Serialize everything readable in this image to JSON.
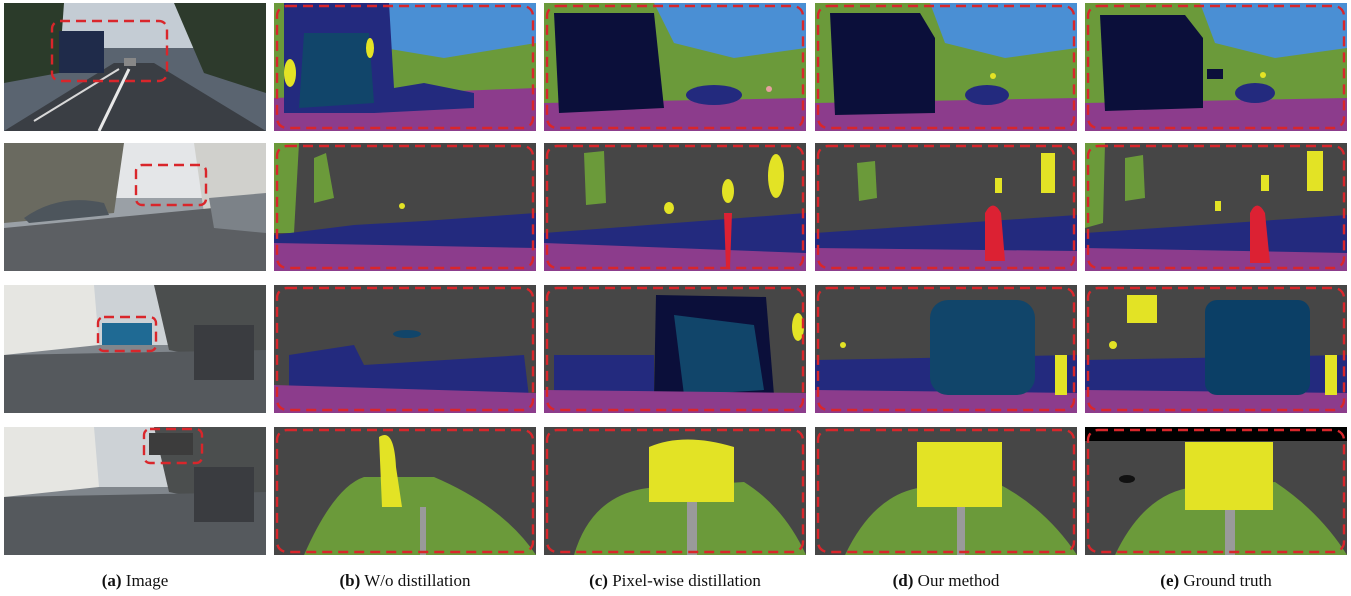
{
  "figure": {
    "columns": [
      {
        "letter": "(a)",
        "label": "Image"
      },
      {
        "letter": "(b)",
        "label": "W/o distillation"
      },
      {
        "letter": "(c)",
        "label": "Pixel-wise distillation"
      },
      {
        "letter": "(d)",
        "label": "Our method"
      },
      {
        "letter": "(e)",
        "label": "Ground truth"
      }
    ],
    "rows": [
      {
        "scene": "street-with-truck"
      },
      {
        "scene": "street-with-parked-cars"
      },
      {
        "scene": "street-with-bus"
      },
      {
        "scene": "street-with-traffic-sign"
      }
    ],
    "palette": {
      "sky": "#4a8fd4",
      "vegetation": "#6b9a3a",
      "building": "#464646",
      "road": "#8c3c8c",
      "sidewalk": "#d45ad4",
      "car": "#20267a",
      "truck": "#0b0f3a",
      "bus": "#0b3f66",
      "person": "#dc2133",
      "traffic-sign": "#e3e325",
      "pole": "#9a9a9a",
      "terrain": "#9ed39a",
      "highlight-box": "#d9262b"
    }
  }
}
